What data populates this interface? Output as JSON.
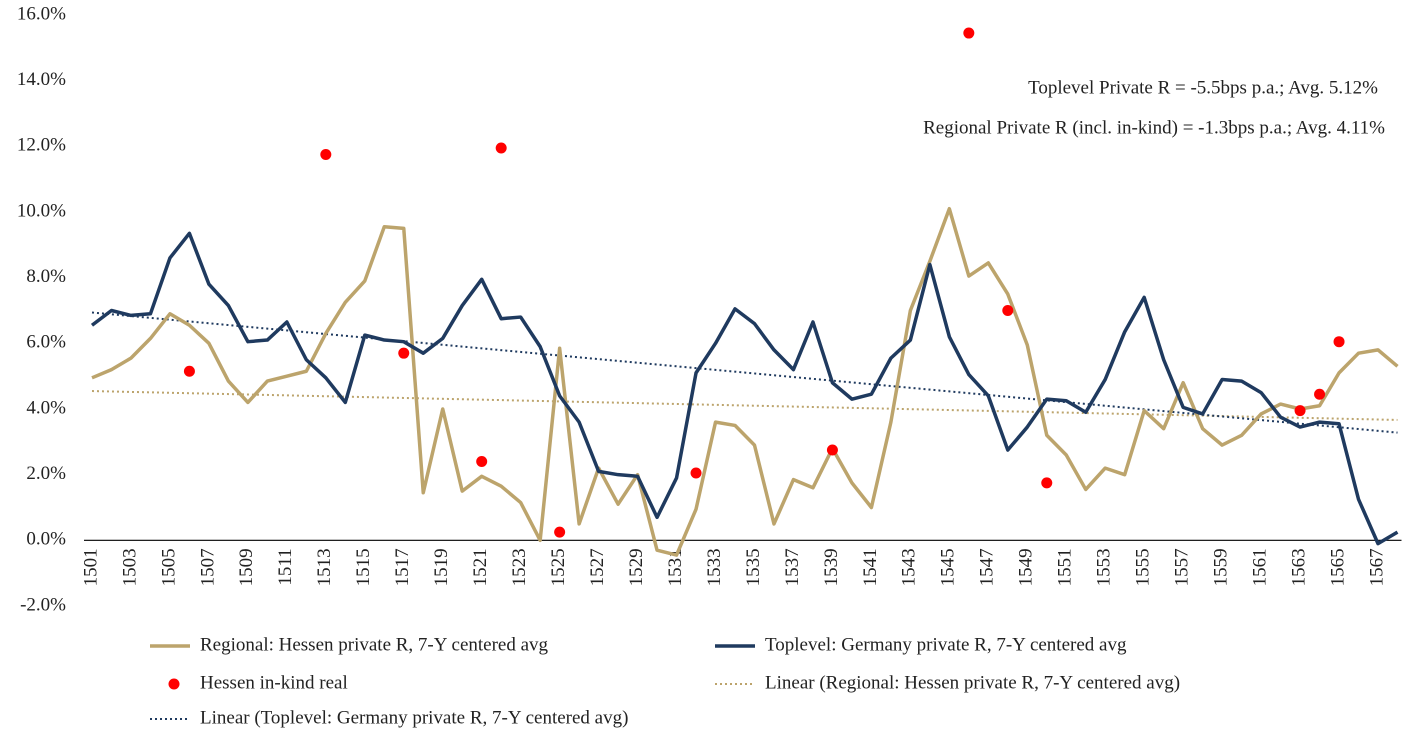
{
  "chart_data": {
    "type": "line",
    "categories": [
      "1501",
      null,
      "1503",
      null,
      "1505",
      null,
      "1507",
      null,
      "1509",
      null,
      "1511",
      null,
      "1513",
      null,
      "1515",
      null,
      "1517",
      null,
      "1519",
      null,
      "1521",
      null,
      "1523",
      null,
      "1525",
      null,
      "1527",
      null,
      "1529",
      null,
      "1531",
      null,
      "1533",
      null,
      "1535",
      null,
      "1537",
      null,
      "1539",
      null,
      "1541",
      null,
      "1543",
      null,
      "1545",
      null,
      "1547",
      null,
      "1549",
      null,
      "1551",
      null,
      "1553",
      null,
      "1555",
      null,
      "1557",
      null,
      "1559",
      null,
      "1561",
      null,
      "1563",
      null,
      "1565",
      null,
      "1567",
      null
    ],
    "series": [
      {
        "name": "Regional: Hessen private R, 7-Y centered avg",
        "type": "line",
        "color": "#bca46c",
        "values": [
          4.95,
          5.2,
          5.55,
          6.15,
          6.9,
          6.55,
          6.0,
          4.85,
          4.2,
          4.85,
          5.0,
          5.15,
          6.3,
          7.25,
          7.9,
          9.55,
          9.5,
          1.45,
          4.0,
          1.5,
          1.95,
          1.65,
          1.15,
          0.0,
          5.85,
          0.5,
          2.2,
          1.1,
          2.0,
          -0.3,
          -0.45,
          0.95,
          3.6,
          3.5,
          2.9,
          0.5,
          1.85,
          1.6,
          2.8,
          1.75,
          1.0,
          3.6,
          7.0,
          8.5,
          10.1,
          8.05,
          8.45,
          7.5,
          5.95,
          3.2,
          2.6,
          1.55,
          2.2,
          2.0,
          3.95,
          3.4,
          4.8,
          3.4,
          2.9,
          3.2,
          3.85,
          4.15,
          4.0,
          4.1,
          5.1,
          5.7,
          5.8,
          5.3
        ],
        "trendline": {
          "name": "Linear (Regional: Hessen private R, 7-Y centered avg)",
          "color": "#bca46c"
        }
      },
      {
        "name": "Toplevel: Germany private R, 7-Y centered avg",
        "type": "line",
        "color": "#1f3a5f",
        "values": [
          6.55,
          7.0,
          6.85,
          6.9,
          8.6,
          9.35,
          7.8,
          7.15,
          6.05,
          6.1,
          6.65,
          5.5,
          4.95,
          4.2,
          6.25,
          6.1,
          6.05,
          5.7,
          6.15,
          7.15,
          7.95,
          6.75,
          6.8,
          5.9,
          4.4,
          3.6,
          2.1,
          2.0,
          1.95,
          0.7,
          1.9,
          5.1,
          6.0,
          7.05,
          6.6,
          5.8,
          5.2,
          6.65,
          4.8,
          4.3,
          4.45,
          5.55,
          6.1,
          8.4,
          6.2,
          5.05,
          4.4,
          2.75,
          3.45,
          4.3,
          4.25,
          3.9,
          4.9,
          6.35,
          7.4,
          5.5,
          4.05,
          3.85,
          4.9,
          4.85,
          4.5,
          3.75,
          3.45,
          3.6,
          3.55,
          1.25,
          -0.1,
          0.25
        ],
        "trendline": {
          "name": "Linear (Toplevel: Germany private R, 7-Y centered avg)",
          "color": "#1f3a5f"
        }
      },
      {
        "name": "Hessen in-kind real",
        "type": "scatter",
        "color": "#ff0000",
        "values": [
          null,
          null,
          null,
          null,
          null,
          5.15,
          null,
          null,
          null,
          null,
          null,
          null,
          11.75,
          null,
          null,
          null,
          5.7,
          null,
          null,
          null,
          2.4,
          11.95,
          null,
          null,
          0.25,
          null,
          null,
          null,
          null,
          null,
          null,
          2.05,
          null,
          null,
          null,
          null,
          null,
          null,
          2.75,
          null,
          null,
          null,
          null,
          null,
          null,
          15.45,
          null,
          7.0,
          null,
          1.75,
          null,
          null,
          null,
          null,
          null,
          null,
          null,
          null,
          null,
          null,
          null,
          null,
          3.95,
          4.45,
          6.05,
          null,
          null,
          null
        ]
      }
    ],
    "ylim": [
      -2,
      16
    ],
    "yticks": [
      {
        "value": -2,
        "label": "-2.0%"
      },
      {
        "value": 0,
        "label": "0.0%"
      },
      {
        "value": 2,
        "label": "2.0%"
      },
      {
        "value": 4,
        "label": "4.0%"
      },
      {
        "value": 6,
        "label": "6.0%"
      },
      {
        "value": 8,
        "label": "8.0%"
      },
      {
        "value": 10,
        "label": "10.0%"
      },
      {
        "value": 12,
        "label": "12.0%"
      },
      {
        "value": 14,
        "label": "14.0%"
      },
      {
        "value": 16,
        "label": "16.0%"
      }
    ],
    "annotations": [
      "Toplevel Private R = -5.5bps p.a.; Avg. 5.12%",
      "Regional Private R (incl. in-kind) = -1.3bps p.a.; Avg. 4.11%"
    ],
    "grid": false
  }
}
